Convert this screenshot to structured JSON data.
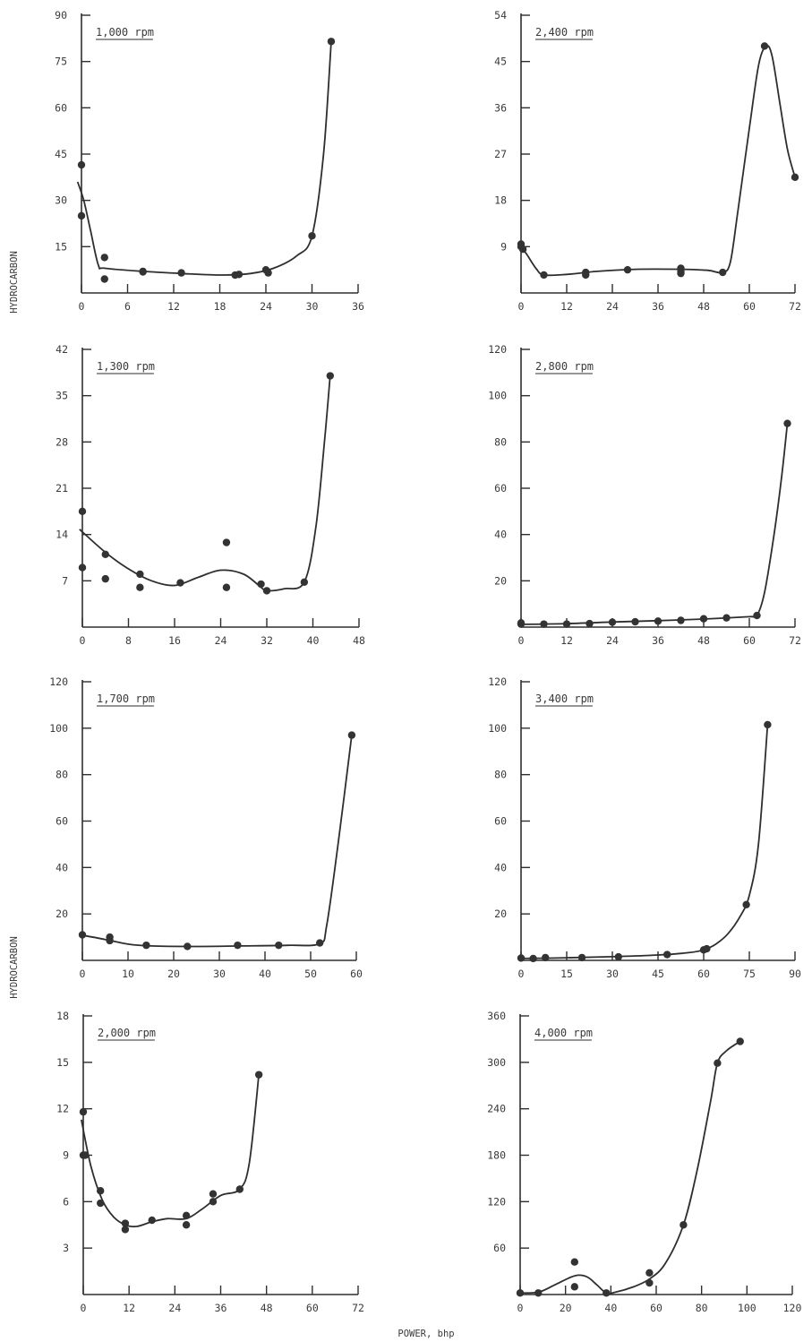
{
  "figure": {
    "ylabel_top": "HYDROCARBON",
    "ylabel_bottom": "HYDROCARBON",
    "xlabel": "POWER, bhp"
  },
  "chart_data": [
    {
      "type": "line",
      "title": "1,000 rpm",
      "xticks": [
        0,
        6,
        12,
        18,
        24,
        30,
        36
      ],
      "yticks": [
        15,
        30,
        45,
        60,
        75,
        90
      ],
      "xlim": [
        0,
        36
      ],
      "ylim": [
        0,
        90
      ],
      "points": [
        [
          0,
          41.5
        ],
        [
          0,
          25
        ],
        [
          3,
          11.5
        ],
        [
          3,
          4.5
        ],
        [
          8,
          7
        ],
        [
          8,
          6.8
        ],
        [
          13,
          6.5
        ],
        [
          20,
          5.8
        ],
        [
          20.5,
          6
        ],
        [
          24,
          7.5
        ],
        [
          24.3,
          6.5
        ],
        [
          30,
          18.5
        ],
        [
          32.5,
          81.5
        ]
      ],
      "curve": [
        [
          -0.5,
          36
        ],
        [
          0.3,
          30
        ],
        [
          1.2,
          20
        ],
        [
          2.2,
          9
        ],
        [
          3,
          8
        ],
        [
          8,
          7
        ],
        [
          13,
          6.3
        ],
        [
          18,
          5.8
        ],
        [
          22,
          6.3
        ],
        [
          25,
          8
        ],
        [
          28,
          12
        ],
        [
          30,
          18.5
        ],
        [
          31.5,
          45
        ],
        [
          32.5,
          81.5
        ]
      ]
    },
    {
      "type": "line",
      "title": "1,300 rpm",
      "xticks": [
        0,
        8,
        16,
        24,
        32,
        40,
        48
      ],
      "yticks": [
        7,
        14,
        21,
        28,
        35,
        42
      ],
      "xlim": [
        0,
        48
      ],
      "ylim": [
        0,
        42
      ],
      "points": [
        [
          0,
          17.5
        ],
        [
          0,
          9
        ],
        [
          4,
          11
        ],
        [
          4,
          7.3
        ],
        [
          10,
          8
        ],
        [
          10,
          6
        ],
        [
          17,
          6.7
        ],
        [
          25,
          12.8
        ],
        [
          25,
          6
        ],
        [
          31,
          6.5
        ],
        [
          32,
          5.5
        ],
        [
          38.5,
          6.8
        ],
        [
          43,
          38
        ]
      ],
      "curve": [
        [
          -0.5,
          14.8
        ],
        [
          4,
          11.3
        ],
        [
          8,
          8.8
        ],
        [
          12,
          7
        ],
        [
          16,
          6.3
        ],
        [
          20,
          7.5
        ],
        [
          24,
          8.6
        ],
        [
          28,
          8
        ],
        [
          31,
          6
        ],
        [
          32,
          5.5
        ],
        [
          35,
          5.8
        ],
        [
          38.5,
          6.8
        ],
        [
          40.5,
          15
        ],
        [
          42,
          28
        ],
        [
          43,
          38
        ]
      ]
    },
    {
      "type": "line",
      "title": "1,700 rpm",
      "xticks": [
        0,
        10,
        20,
        30,
        40,
        50,
        60
      ],
      "yticks": [
        20,
        40,
        60,
        80,
        100,
        120
      ],
      "xlim": [
        0,
        60
      ],
      "ylim": [
        0,
        120
      ],
      "points": [
        [
          0,
          11
        ],
        [
          6,
          10
        ],
        [
          6,
          8.5
        ],
        [
          14,
          6.5
        ],
        [
          23,
          6
        ],
        [
          34,
          6.5
        ],
        [
          43,
          6.5
        ],
        [
          52,
          7.5
        ],
        [
          59,
          97
        ]
      ],
      "curve": [
        [
          -0.5,
          11
        ],
        [
          5,
          9
        ],
        [
          10,
          7
        ],
        [
          15,
          6.2
        ],
        [
          25,
          6
        ],
        [
          35,
          6.2
        ],
        [
          45,
          6.5
        ],
        [
          52,
          7.2
        ],
        [
          53.5,
          15
        ],
        [
          56,
          50
        ],
        [
          59,
          97
        ]
      ]
    },
    {
      "type": "line",
      "title": "2,000 rpm",
      "xticks": [
        0,
        12,
        24,
        36,
        48,
        60,
        72
      ],
      "yticks": [
        3,
        6,
        9,
        12,
        15,
        18
      ],
      "xlim": [
        0,
        72
      ],
      "ylim": [
        0,
        18
      ],
      "points": [
        [
          0,
          11.8
        ],
        [
          0,
          9
        ],
        [
          0.5,
          9
        ],
        [
          4.5,
          6.7
        ],
        [
          4.5,
          5.9
        ],
        [
          11,
          4.6
        ],
        [
          11,
          4.2
        ],
        [
          18,
          4.8
        ],
        [
          27,
          5.1
        ],
        [
          27,
          4.5
        ],
        [
          34,
          6.5
        ],
        [
          34,
          6
        ],
        [
          41,
          6.8
        ],
        [
          46,
          14.2
        ]
      ],
      "curve": [
        [
          -0.5,
          11.3
        ],
        [
          2,
          8.3
        ],
        [
          5,
          6.1
        ],
        [
          8,
          5
        ],
        [
          11,
          4.5
        ],
        [
          14,
          4.4
        ],
        [
          18,
          4.7
        ],
        [
          22,
          4.9
        ],
        [
          27,
          4.9
        ],
        [
          31,
          5.5
        ],
        [
          36,
          6.4
        ],
        [
          41,
          6.8
        ],
        [
          43.5,
          8.5
        ],
        [
          46,
          14.2
        ]
      ]
    },
    {
      "type": "line",
      "title": "2,400 rpm",
      "xticks": [
        0,
        12,
        24,
        36,
        48,
        60,
        72
      ],
      "yticks": [
        9,
        18,
        27,
        36,
        45,
        54
      ],
      "xlim": [
        0,
        72
      ],
      "ylim": [
        0,
        54
      ],
      "points": [
        [
          0,
          9.5
        ],
        [
          0,
          9
        ],
        [
          0.5,
          8.5
        ],
        [
          6,
          3.5
        ],
        [
          17,
          4
        ],
        [
          17,
          3.5
        ],
        [
          28,
          4.5
        ],
        [
          42,
          4.8
        ],
        [
          42,
          4.2
        ],
        [
          42,
          3.8
        ],
        [
          53,
          4
        ],
        [
          64,
          48
        ],
        [
          72,
          22.5
        ]
      ],
      "curve": [
        [
          -0.3,
          9.2
        ],
        [
          1.5,
          7.5
        ],
        [
          4,
          4.7
        ],
        [
          6,
          3.5
        ],
        [
          12,
          3.6
        ],
        [
          20,
          4.2
        ],
        [
          30,
          4.6
        ],
        [
          42,
          4.6
        ],
        [
          49,
          4.4
        ],
        [
          53,
          4
        ],
        [
          55,
          6
        ],
        [
          57,
          16
        ],
        [
          60,
          32
        ],
        [
          62.5,
          44.5
        ],
        [
          64.5,
          48
        ],
        [
          66,
          46
        ],
        [
          68,
          37
        ],
        [
          70,
          28
        ],
        [
          72,
          22.5
        ]
      ]
    },
    {
      "type": "line",
      "title": "2,800 rpm",
      "xticks": [
        0,
        12,
        24,
        36,
        48,
        60,
        72
      ],
      "yticks": [
        20,
        40,
        60,
        80,
        100,
        120
      ],
      "xlim": [
        0,
        72
      ],
      "ylim": [
        0,
        120
      ],
      "points": [
        [
          0,
          1.8
        ],
        [
          0,
          1.3
        ],
        [
          6,
          1.3
        ],
        [
          12,
          1.3
        ],
        [
          18,
          1.5
        ],
        [
          24,
          2.1
        ],
        [
          30,
          2.3
        ],
        [
          36,
          2.6
        ],
        [
          42,
          2.9
        ],
        [
          48,
          3.6
        ],
        [
          54,
          4
        ],
        [
          62,
          5
        ],
        [
          70,
          88
        ]
      ],
      "curve": [
        [
          -0.3,
          1.2
        ],
        [
          12,
          1.5
        ],
        [
          24,
          2.2
        ],
        [
          36,
          2.8
        ],
        [
          48,
          3.5
        ],
        [
          60,
          4.5
        ],
        [
          62,
          5
        ],
        [
          64,
          15
        ],
        [
          66.5,
          40
        ],
        [
          68.5,
          65
        ],
        [
          70,
          88
        ]
      ]
    },
    {
      "type": "line",
      "title": "3,400 rpm",
      "xticks": [
        0,
        15,
        30,
        45,
        60,
        75,
        90
      ],
      "yticks": [
        20,
        40,
        60,
        80,
        100,
        120
      ],
      "xlim": [
        0,
        90
      ],
      "ylim": [
        0,
        120
      ],
      "points": [
        [
          0,
          1
        ],
        [
          4,
          0.8
        ],
        [
          8,
          1.2
        ],
        [
          20,
          1.2
        ],
        [
          32,
          1.5
        ],
        [
          48,
          2.5
        ],
        [
          60,
          4.5
        ],
        [
          61,
          5
        ],
        [
          74,
          24
        ],
        [
          81,
          101.5
        ]
      ],
      "curve": [
        [
          0,
          0.8
        ],
        [
          15,
          1.1
        ],
        [
          30,
          1.6
        ],
        [
          45,
          2.3
        ],
        [
          55,
          3.3
        ],
        [
          60,
          4.5
        ],
        [
          64,
          7
        ],
        [
          68,
          11.5
        ],
        [
          72,
          19
        ],
        [
          75,
          28
        ],
        [
          78,
          50
        ],
        [
          81,
          101.5
        ]
      ]
    },
    {
      "type": "line",
      "title": "4,000 rpm",
      "xticks": [
        0,
        20,
        40,
        60,
        80,
        100,
        120
      ],
      "yticks": [
        60,
        120,
        180,
        240,
        300,
        360
      ],
      "xlim": [
        0,
        120
      ],
      "ylim": [
        0,
        360
      ],
      "points": [
        [
          0,
          2
        ],
        [
          8,
          2
        ],
        [
          24,
          42
        ],
        [
          24,
          10
        ],
        [
          38,
          2
        ],
        [
          57,
          28
        ],
        [
          57,
          15
        ],
        [
          72,
          90
        ],
        [
          87,
          299
        ],
        [
          97,
          327
        ]
      ],
      "curve": [
        [
          0,
          2
        ],
        [
          8,
          3
        ],
        [
          15,
          12
        ],
        [
          22,
          22
        ],
        [
          26,
          25
        ],
        [
          30,
          22
        ],
        [
          34,
          12
        ],
        [
          38,
          2
        ],
        [
          42,
          3
        ],
        [
          50,
          10
        ],
        [
          57,
          20
        ],
        [
          64,
          40
        ],
        [
          72,
          90
        ],
        [
          78,
          160
        ],
        [
          84,
          250
        ],
        [
          87,
          299
        ],
        [
          91,
          315
        ],
        [
          97,
          327
        ]
      ]
    }
  ]
}
